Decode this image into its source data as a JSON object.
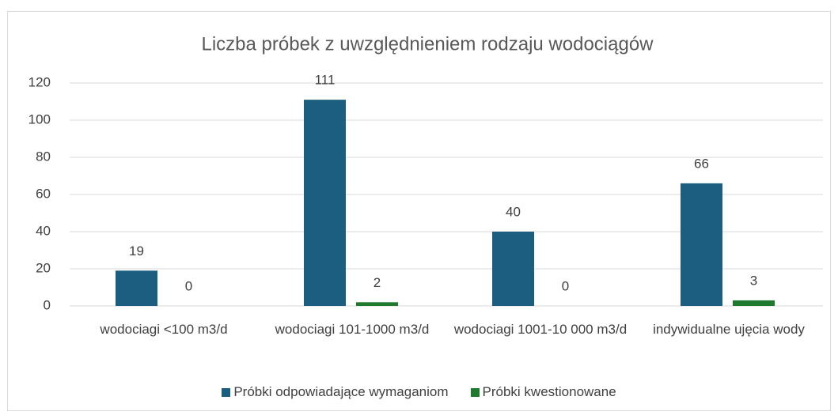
{
  "chart_data": {
    "type": "bar",
    "title": "Liczba próbek z uwzględnieniem rodzaju wodociągów",
    "categories": [
      "wodociagi <100 m3/d",
      "wodociagi 101-1000 m3/d",
      "wodociagi 1001-10 000 m3/d",
      "indywidualne ujęcia wody"
    ],
    "series": [
      {
        "name": "Próbki odpowiadające wymaganiom",
        "color": "#1b5e80",
        "values": [
          19,
          111,
          40,
          66
        ]
      },
      {
        "name": "Próbki kwestionowane",
        "color": "#1f7a2e",
        "values": [
          0,
          2,
          0,
          3
        ]
      }
    ],
    "ylim": [
      0,
      120
    ],
    "yticks": [
      0,
      20,
      40,
      60,
      80,
      100,
      120
    ],
    "grid": true,
    "legend": "bottom"
  }
}
